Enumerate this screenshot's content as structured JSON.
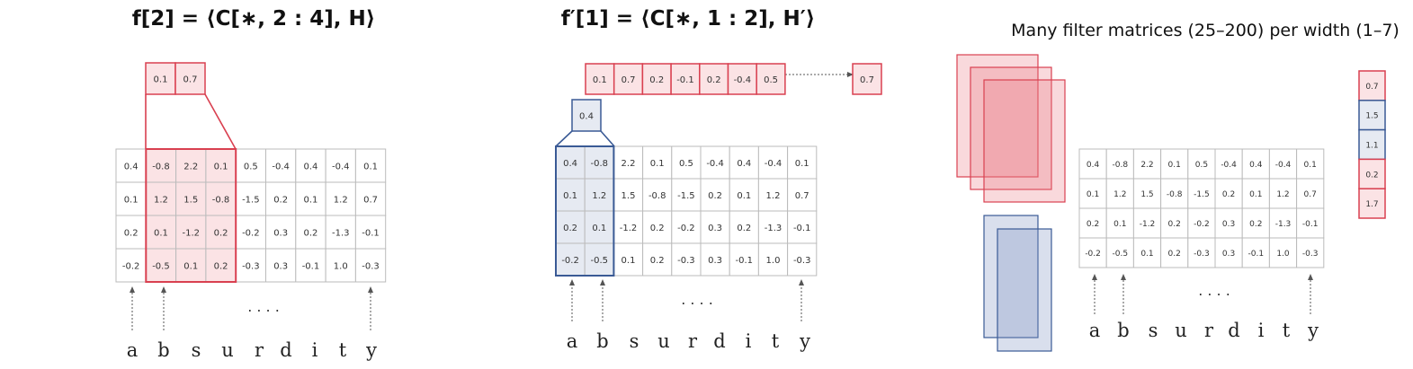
{
  "panels": [
    {
      "title": "f[2] = ⟨C[∗, 2 : 4], H⟩",
      "output": [
        "0.1",
        "0.7"
      ],
      "matrix": [
        [
          "0.4",
          "-0.8",
          "2.2",
          "0.1",
          "0.5",
          "-0.4",
          "0.4",
          "-0.4",
          "0.1"
        ],
        [
          "0.1",
          "1.2",
          "1.5",
          "-0.8",
          "-1.5",
          "0.2",
          "0.1",
          "1.2",
          "0.7"
        ],
        [
          "0.2",
          "0.1",
          "-1.2",
          "0.2",
          "-0.2",
          "0.3",
          "0.2",
          "-1.3",
          "-0.1"
        ],
        [
          "-0.2",
          "-0.5",
          "0.1",
          "0.2",
          "-0.3",
          "0.3",
          "-0.1",
          "1.0",
          "-0.3"
        ]
      ],
      "letters": [
        "a",
        "b",
        "s",
        "u",
        "r",
        "d",
        "i",
        "t",
        "y"
      ],
      "ellipsis": ". . . ."
    },
    {
      "title": "f′[1] = ⟨C[∗, 1 : 2], H′⟩",
      "output": [
        "0.1",
        "0.7",
        "0.2",
        "-0.1",
        "0.2",
        "-0.4",
        "0.5"
      ],
      "output_max": "0.7",
      "filter": "0.4",
      "matrix": [
        [
          "0.4",
          "-0.8",
          "2.2",
          "0.1",
          "0.5",
          "-0.4",
          "0.4",
          "-0.4",
          "0.1"
        ],
        [
          "0.1",
          "1.2",
          "1.5",
          "-0.8",
          "-1.5",
          "0.2",
          "0.1",
          "1.2",
          "0.7"
        ],
        [
          "0.2",
          "0.1",
          "-1.2",
          "0.2",
          "-0.2",
          "0.3",
          "0.2",
          "-1.3",
          "-0.1"
        ],
        [
          "-0.2",
          "-0.5",
          "0.1",
          "0.2",
          "-0.3",
          "0.3",
          "-0.1",
          "1.0",
          "-0.3"
        ]
      ],
      "letters": [
        "a",
        "b",
        "s",
        "u",
        "r",
        "d",
        "i",
        "t",
        "y"
      ],
      "ellipsis": ". . . ."
    },
    {
      "title": "Many filter matrices (25–200) per width (1–7)",
      "matrix": [
        [
          "0.4",
          "-0.8",
          "2.2",
          "0.1",
          "0.5",
          "-0.4",
          "0.4",
          "-0.4",
          "0.1"
        ],
        [
          "0.1",
          "1.2",
          "1.5",
          "-0.8",
          "-1.5",
          "0.2",
          "0.1",
          "1.2",
          "0.7"
        ],
        [
          "0.2",
          "0.1",
          "-1.2",
          "0.2",
          "-0.2",
          "0.3",
          "0.2",
          "-1.3",
          "-0.1"
        ],
        [
          "-0.2",
          "-0.5",
          "0.1",
          "0.2",
          "-0.3",
          "0.3",
          "-0.1",
          "1.0",
          "-0.3"
        ]
      ],
      "letters": [
        "a",
        "b",
        "s",
        "u",
        "r",
        "d",
        "i",
        "t",
        "y"
      ],
      "ellipsis": ". . . .",
      "feature_vector": [
        "0.7",
        "1.5",
        "1.1",
        "0.2",
        "1.7"
      ]
    }
  ]
}
